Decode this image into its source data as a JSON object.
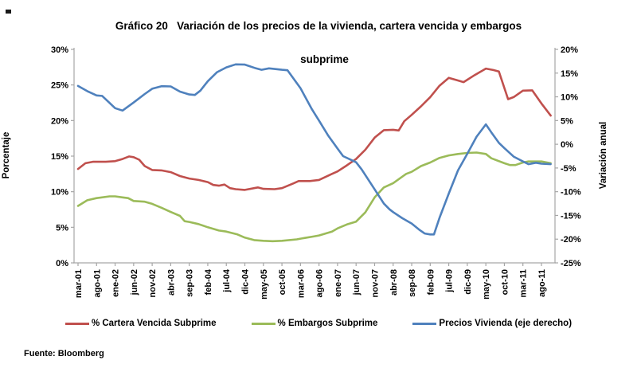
{
  "title_line1": "Gráfico 20   Variación de los precios de la vivienda, cartera vencida y embargos",
  "title_line2": "subprime",
  "source_note": "Fuente: Bloomberg",
  "colors": {
    "cartera_vencida": "#C0504D",
    "embargos": "#9BBB59",
    "precios_vivienda": "#4F81BD",
    "axis_line": "#a6a6a6",
    "text": "#000000"
  },
  "chart_data": {
    "type": "line",
    "title": "Gráfico 20 Variación de los precios de la vivienda, cartera vencida y embargos subprime",
    "ylabel_left": "Porcentaje",
    "ylabel_right": "Variación anual",
    "ylim_left": [
      0,
      30
    ],
    "ylim_right": [
      -25,
      20
    ],
    "grid": false,
    "legend_position": "bottom",
    "y_ticks_left": [
      {
        "label": "0%",
        "value": 0
      },
      {
        "label": "5%",
        "value": 5
      },
      {
        "label": "10%",
        "value": 10
      },
      {
        "label": "15%",
        "value": 15
      },
      {
        "label": "20%",
        "value": 20
      },
      {
        "label": "25%",
        "value": 25
      },
      {
        "label": "30%",
        "value": 30
      }
    ],
    "y_ticks_right": [
      {
        "label": "-25%",
        "value": -25
      },
      {
        "label": "-20%",
        "value": -20
      },
      {
        "label": "-15%",
        "value": -15
      },
      {
        "label": "-10%",
        "value": -10
      },
      {
        "label": "-5%",
        "value": -5
      },
      {
        "label": "0%",
        "value": 0
      },
      {
        "label": "5%",
        "value": 5
      },
      {
        "label": "10%",
        "value": 10
      },
      {
        "label": "15%",
        "value": 15
      },
      {
        "label": "20%",
        "value": 20
      }
    ],
    "categories": [
      "mar-01",
      "ago-01",
      "ene-02",
      "jun-02",
      "nov-02",
      "abr-03",
      "sep-03",
      "feb-04",
      "jul-04",
      "dic-04",
      "may-05",
      "oct-05",
      "mar-06",
      "ago-06",
      "ene-07",
      "jun-07",
      "nov-07",
      "abr-08",
      "sep-08",
      "feb-09",
      "jul-09",
      "dic-09",
      "may-10",
      "oct-10",
      "mar-11",
      "ago-11"
    ],
    "series": [
      {
        "name": "% Cartera Vencida Subprime",
        "color": "#C0504D",
        "axis": "left",
        "points": [
          [
            0,
            13.2
          ],
          [
            0.4,
            14.0
          ],
          [
            0.8,
            14.2
          ],
          [
            1.5,
            14.2
          ],
          [
            2,
            14.3
          ],
          [
            2.4,
            14.6
          ],
          [
            2.75,
            14.95
          ],
          [
            3,
            14.85
          ],
          [
            3.3,
            14.5
          ],
          [
            3.6,
            13.6
          ],
          [
            4,
            13.05
          ],
          [
            4.5,
            13.0
          ],
          [
            5,
            12.75
          ],
          [
            5.5,
            12.2
          ],
          [
            6,
            11.85
          ],
          [
            6.5,
            11.65
          ],
          [
            7,
            11.35
          ],
          [
            7.3,
            10.95
          ],
          [
            7.6,
            10.85
          ],
          [
            7.9,
            11.0
          ],
          [
            8.2,
            10.5
          ],
          [
            8.5,
            10.35
          ],
          [
            9,
            10.25
          ],
          [
            9.7,
            10.6
          ],
          [
            10,
            10.4
          ],
          [
            10.6,
            10.35
          ],
          [
            11,
            10.5
          ],
          [
            11.6,
            11.15
          ],
          [
            11.9,
            11.5
          ],
          [
            12.5,
            11.5
          ],
          [
            13,
            11.65
          ],
          [
            13.7,
            12.5
          ],
          [
            14,
            12.85
          ],
          [
            14.5,
            13.7
          ],
          [
            15,
            14.6
          ],
          [
            15.5,
            15.9
          ],
          [
            16,
            17.6
          ],
          [
            16.5,
            18.65
          ],
          [
            17,
            18.7
          ],
          [
            17.3,
            18.6
          ],
          [
            17.6,
            19.9
          ],
          [
            18,
            20.8
          ],
          [
            18.5,
            22.0
          ],
          [
            19,
            23.3
          ],
          [
            19.5,
            24.9
          ],
          [
            20,
            26.0
          ],
          [
            20.4,
            25.7
          ],
          [
            20.8,
            25.4
          ],
          [
            21.4,
            26.4
          ],
          [
            22,
            27.3
          ],
          [
            22.4,
            27.1
          ],
          [
            22.7,
            26.9
          ],
          [
            23.2,
            23.0
          ],
          [
            23.5,
            23.3
          ],
          [
            24,
            24.2
          ],
          [
            24.5,
            24.25
          ],
          [
            25,
            22.4
          ],
          [
            25.5,
            20.7
          ]
        ]
      },
      {
        "name": "% Embargos Subprime",
        "color": "#9BBB59",
        "axis": "left",
        "points": [
          [
            0,
            8.0
          ],
          [
            0.5,
            8.8
          ],
          [
            1,
            9.1
          ],
          [
            1.7,
            9.35
          ],
          [
            2,
            9.35
          ],
          [
            2.4,
            9.2
          ],
          [
            2.7,
            9.1
          ],
          [
            3,
            8.7
          ],
          [
            3.6,
            8.6
          ],
          [
            4,
            8.3
          ],
          [
            4.5,
            7.75
          ],
          [
            5,
            7.15
          ],
          [
            5.5,
            6.6
          ],
          [
            5.75,
            5.85
          ],
          [
            6,
            5.75
          ],
          [
            6.5,
            5.45
          ],
          [
            7,
            5.0
          ],
          [
            7.6,
            4.55
          ],
          [
            8,
            4.4
          ],
          [
            8.6,
            4.0
          ],
          [
            9,
            3.55
          ],
          [
            9.5,
            3.2
          ],
          [
            10,
            3.1
          ],
          [
            10.5,
            3.05
          ],
          [
            11,
            3.1
          ],
          [
            11.8,
            3.3
          ],
          [
            12,
            3.4
          ],
          [
            12.7,
            3.7
          ],
          [
            13,
            3.85
          ],
          [
            13.7,
            4.4
          ],
          [
            14,
            4.85
          ],
          [
            14.5,
            5.4
          ],
          [
            15,
            5.8
          ],
          [
            15.5,
            7.1
          ],
          [
            16,
            9.2
          ],
          [
            16.5,
            10.6
          ],
          [
            17,
            11.2
          ],
          [
            17.7,
            12.5
          ],
          [
            18,
            12.8
          ],
          [
            18.5,
            13.6
          ],
          [
            19,
            14.1
          ],
          [
            19.5,
            14.75
          ],
          [
            20,
            15.1
          ],
          [
            20.5,
            15.3
          ],
          [
            21,
            15.45
          ],
          [
            21.5,
            15.5
          ],
          [
            22,
            15.3
          ],
          [
            22.3,
            14.7
          ],
          [
            23,
            14.0
          ],
          [
            23.3,
            13.75
          ],
          [
            23.6,
            13.75
          ],
          [
            24,
            14.1
          ],
          [
            24.3,
            14.25
          ],
          [
            25,
            14.25
          ],
          [
            25.5,
            14.0
          ]
        ]
      },
      {
        "name": "Precios Vivienda (eje derecho)",
        "color": "#4F81BD",
        "axis": "right",
        "points": [
          [
            0,
            12.3
          ],
          [
            0.5,
            11.2
          ],
          [
            1,
            10.3
          ],
          [
            1.3,
            10.2
          ],
          [
            2,
            7.6
          ],
          [
            2.4,
            7.1
          ],
          [
            3,
            8.8
          ],
          [
            3.6,
            10.6
          ],
          [
            4,
            11.7
          ],
          [
            4.5,
            12.25
          ],
          [
            5,
            12.2
          ],
          [
            5.5,
            11.1
          ],
          [
            6,
            10.5
          ],
          [
            6.3,
            10.4
          ],
          [
            6.6,
            11.3
          ],
          [
            7,
            13.3
          ],
          [
            7.5,
            15.2
          ],
          [
            8,
            16.2
          ],
          [
            8.5,
            16.85
          ],
          [
            9,
            16.8
          ],
          [
            9.6,
            16.0
          ],
          [
            9.9,
            15.7
          ],
          [
            10.3,
            16.0
          ],
          [
            11,
            15.7
          ],
          [
            11.3,
            15.6
          ],
          [
            12,
            11.8
          ],
          [
            12.6,
            7.5
          ],
          [
            13,
            5.0
          ],
          [
            13.5,
            1.8
          ],
          [
            14,
            -0.9
          ],
          [
            14.3,
            -2.5
          ],
          [
            15,
            -3.8
          ],
          [
            15.3,
            -5.3
          ],
          [
            16,
            -9.5
          ],
          [
            16.5,
            -12.5
          ],
          [
            16.8,
            -13.7
          ],
          [
            17,
            -14.3
          ],
          [
            17.5,
            -15.6
          ],
          [
            18,
            -16.7
          ],
          [
            18.4,
            -18.0
          ],
          [
            18.7,
            -18.8
          ],
          [
            19,
            -19.0
          ],
          [
            19.2,
            -19.0
          ],
          [
            19.5,
            -15.5
          ],
          [
            20,
            -10.4
          ],
          [
            20.5,
            -5.5
          ],
          [
            21,
            -2.0
          ],
          [
            21.5,
            1.6
          ],
          [
            22,
            4.2
          ],
          [
            22.3,
            2.5
          ],
          [
            22.7,
            0.3
          ],
          [
            23,
            -0.8
          ],
          [
            23.5,
            -2.6
          ],
          [
            24,
            -3.6
          ],
          [
            24.3,
            -4.2
          ],
          [
            24.7,
            -3.9
          ],
          [
            25,
            -4.1
          ],
          [
            25.5,
            -4.2
          ]
        ]
      }
    ]
  },
  "legend": {
    "items": [
      {
        "label": "% Cartera Vencida Subprime",
        "color": "#C0504D"
      },
      {
        "label": "% Embargos Subprime",
        "color": "#9BBB59"
      },
      {
        "label": "Precios Vivienda (eje derecho)",
        "color": "#4F81BD"
      }
    ]
  }
}
